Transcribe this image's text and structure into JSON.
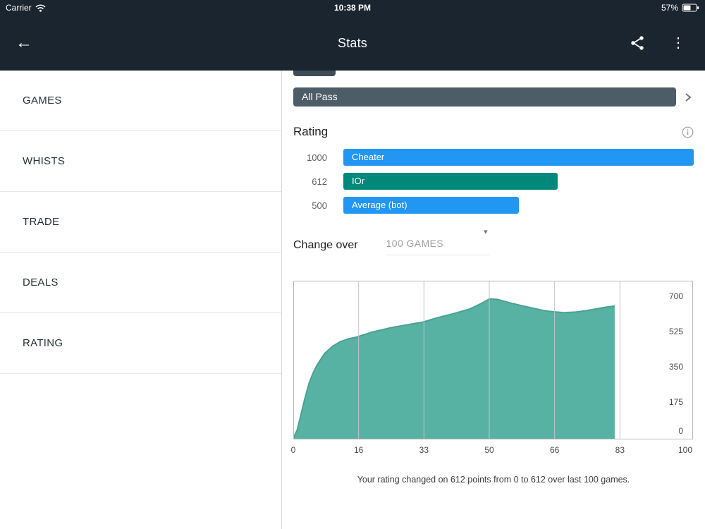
{
  "status_bar": {
    "carrier": "Carrier",
    "time": "10:38 PM",
    "battery_percent": "57%"
  },
  "nav_bar": {
    "title": "Stats",
    "back_icon": "←",
    "overflow_icon": "⋮"
  },
  "sidebar": {
    "items": [
      {
        "label": "GAMES"
      },
      {
        "label": "WHISTS"
      },
      {
        "label": "TRADE"
      },
      {
        "label": "DEALS"
      },
      {
        "label": "RATING"
      }
    ]
  },
  "content": {
    "all_pass": {
      "label": "All Pass"
    },
    "rating": {
      "heading": "Rating",
      "bars": [
        {
          "value": "1000",
          "label": "Cheater",
          "color": "#2196f3",
          "width_pct": 100
        },
        {
          "value": "612",
          "label": "IOr",
          "color": "#00897b",
          "width_pct": 61.2
        },
        {
          "value": "500",
          "label": "Average (bot)",
          "color": "#2196f3",
          "width_pct": 50
        }
      ]
    },
    "change_over": {
      "label": "Change over",
      "value": "100 GAMES",
      "caret": "▾"
    },
    "caption": "Your rating changed on 612 points from 0 to 612 over last 100 games."
  },
  "chart_data": {
    "type": "area",
    "title": "",
    "xlabel": "",
    "ylabel": "",
    "x": [
      0,
      1,
      2,
      3,
      4,
      5,
      6,
      8,
      10,
      12,
      14,
      16,
      20,
      25,
      29,
      33,
      37,
      41,
      45,
      48,
      50,
      52,
      55,
      58,
      61,
      64,
      66,
      69,
      72,
      75,
      78,
      80,
      82
    ],
    "values": [
      0,
      40,
      120,
      200,
      270,
      320,
      360,
      420,
      455,
      478,
      492,
      500,
      525,
      548,
      562,
      575,
      598,
      618,
      640,
      668,
      690,
      688,
      672,
      658,
      645,
      632,
      627,
      622,
      625,
      633,
      643,
      650,
      655
    ],
    "xticks": [
      0,
      16,
      33,
      50,
      66,
      83,
      100
    ],
    "yticks": [
      0,
      175,
      350,
      525,
      700
    ],
    "xlim": [
      0,
      100
    ],
    "ylim": [
      0,
      780
    ],
    "grid": "vertical",
    "legend": "none",
    "fill_color": "#58b2a4",
    "line_color": "#49a294",
    "grid_color": "#c4c4c4",
    "border_color": "#b9b9b9"
  }
}
